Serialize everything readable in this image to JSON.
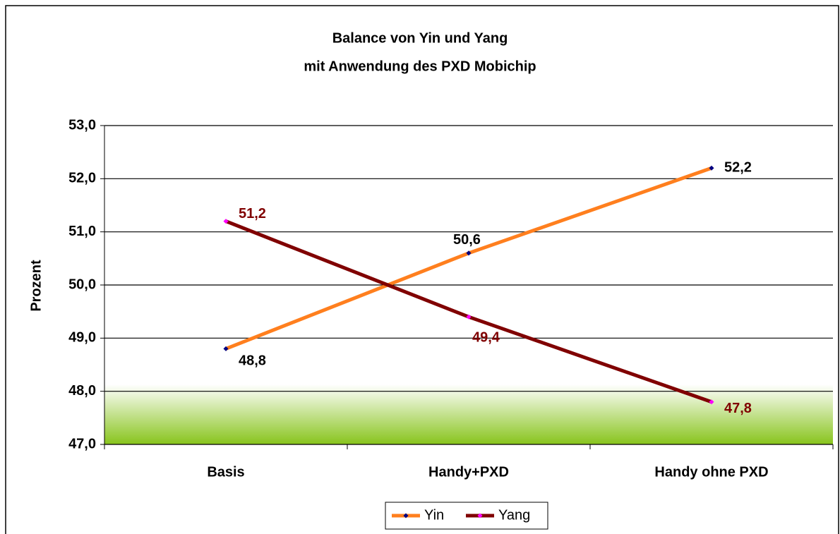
{
  "chart_data": {
    "type": "line",
    "title": [
      "Balance von Yin und Yang",
      "mit Anwendung des PXD Mobichip"
    ],
    "y_label": "Prozent",
    "categories": [
      "Basis",
      "Handy+PXD",
      "Handy ohne PXD"
    ],
    "series": [
      {
        "name": "Yin",
        "color": "#ff7f1e",
        "marker_color": "#000080",
        "label_color": "#000000",
        "values": [
          48.8,
          50.6,
          52.2
        ],
        "value_labels": [
          "48,8",
          "50,6",
          "52,2"
        ]
      },
      {
        "name": "Yang",
        "color": "#800000",
        "marker_color": "#ff00ff",
        "label_color": "#800000",
        "values": [
          51.2,
          49.4,
          47.8
        ],
        "value_labels": [
          "51,2",
          "49,4",
          "47,8"
        ]
      }
    ],
    "ylim": [
      47,
      53
    ],
    "yticks": [
      {
        "value": 47,
        "label": "47,0"
      },
      {
        "value": 48,
        "label": "48,0"
      },
      {
        "value": 49,
        "label": "49,0"
      },
      {
        "value": 50,
        "label": "50,0"
      },
      {
        "value": 51,
        "label": "51,0"
      },
      {
        "value": 52,
        "label": "52,0"
      },
      {
        "value": 53,
        "label": "53,0"
      }
    ],
    "grid": true,
    "legend": "bottom"
  }
}
